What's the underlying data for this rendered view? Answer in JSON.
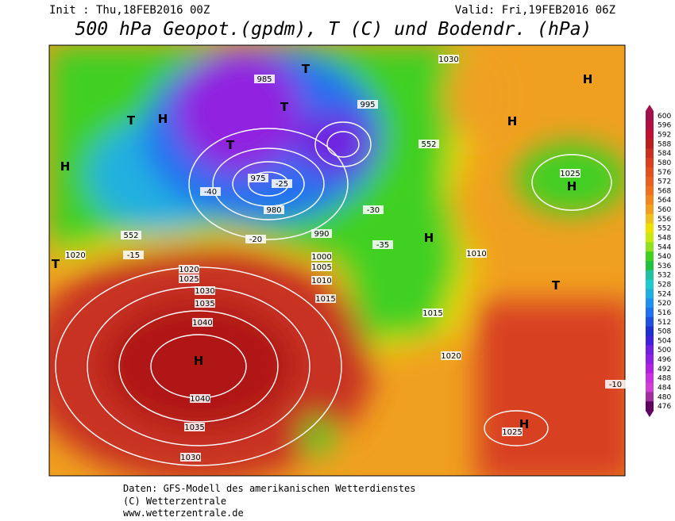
{
  "header": {
    "init": "Init : Thu,18FEB2016 00Z",
    "valid": "Valid: Fri,19FEB2016 06Z",
    "title": "500 hPa Geopot.(gpdm), T (C) und Bodendr. (hPa)"
  },
  "colorbar": {
    "levels": [
      600,
      596,
      592,
      588,
      584,
      580,
      576,
      572,
      568,
      564,
      560,
      556,
      552,
      548,
      544,
      540,
      536,
      532,
      528,
      524,
      520,
      516,
      512,
      508,
      504,
      500,
      496,
      492,
      488,
      484,
      480,
      476
    ],
    "colors": [
      "#a0104a",
      "#b01040",
      "#c01030",
      "#b82020",
      "#c83020",
      "#d84020",
      "#e05020",
      "#e86020",
      "#f07020",
      "#f08820",
      "#f0a020",
      "#f0c020",
      "#f0e000",
      "#c8e810",
      "#90e020",
      "#40d020",
      "#20c040",
      "#20c0a0",
      "#20c8d0",
      "#20b0e0",
      "#2090f0",
      "#2070f0",
      "#2050e0",
      "#2030d0",
      "#4020e0",
      "#7020e0",
      "#9020e0",
      "#b020e0",
      "#c830e0",
      "#d040d0",
      "#a030a0",
      "#600060"
    ]
  },
  "map_labels": [
    "H",
    "H",
    "H",
    "H",
    "H",
    "H",
    "H",
    "H",
    "T",
    "T",
    "T",
    "T",
    "T",
    "T",
    "1040",
    "1040",
    "1035",
    "1035",
    "1030",
    "1030",
    "1025",
    "1020",
    "1015",
    "1010",
    "1005",
    "1000",
    "995",
    "990",
    "985",
    "980",
    "975",
    "1030",
    "1025",
    "1020",
    "1015",
    "1010",
    "-25",
    "-30",
    "-35",
    "-40",
    "-20",
    "-15",
    "-10",
    "552",
    "552",
    "1020",
    "1025"
  ],
  "footer": [
    "Daten: GFS-Modell des amerikanischen Wetterdienstes",
    "(C) Wetterzentrale",
    "www.wetterzentrale.de"
  ]
}
